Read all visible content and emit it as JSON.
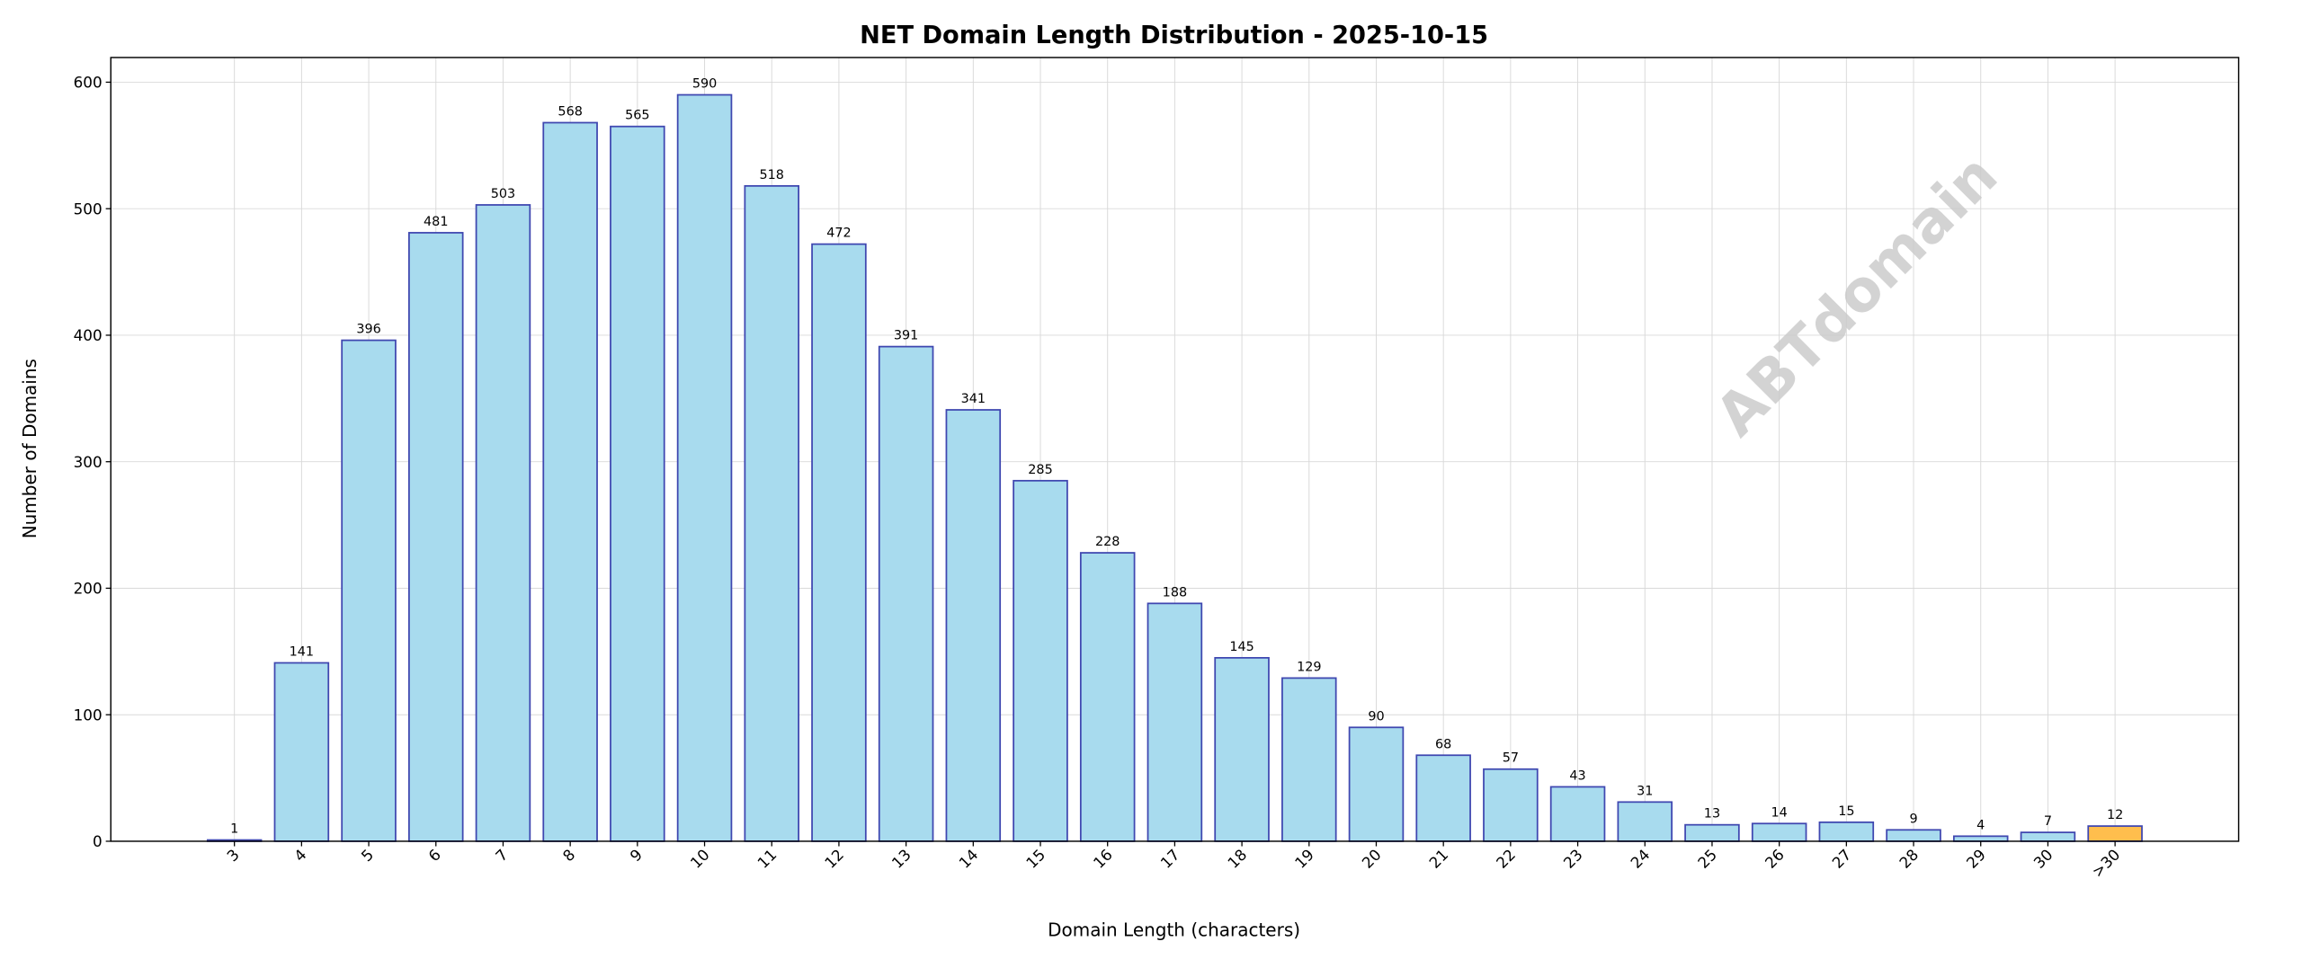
{
  "chart_data": {
    "type": "bar",
    "title": "NET Domain Length Distribution - 2025-10-15",
    "xlabel": "Domain Length (characters)",
    "ylabel": "Number of Domains",
    "categories": [
      "3",
      "4",
      "5",
      "6",
      "7",
      "8",
      "9",
      "10",
      "11",
      "12",
      "13",
      "14",
      "15",
      "16",
      "17",
      "18",
      "19",
      "20",
      "21",
      "22",
      "23",
      "24",
      "25",
      "26",
      "27",
      "28",
      "29",
      "30",
      ">30"
    ],
    "values": [
      1,
      141,
      396,
      481,
      503,
      568,
      565,
      590,
      518,
      472,
      391,
      341,
      285,
      228,
      188,
      145,
      129,
      90,
      68,
      57,
      43,
      31,
      13,
      14,
      15,
      9,
      4,
      7,
      12
    ],
    "ylim": [
      0,
      619.5
    ],
    "yticks": [
      0,
      100,
      200,
      300,
      400,
      500,
      600
    ],
    "grid": true,
    "data_labels": true,
    "watermark": "ABTdomain",
    "colors": {
      "bar_fill": "#a8dbee",
      "bar_edge": "#3f47b0",
      "highlight_fill": "#ffbe4d",
      "watermark": "#c8c8c8"
    }
  }
}
